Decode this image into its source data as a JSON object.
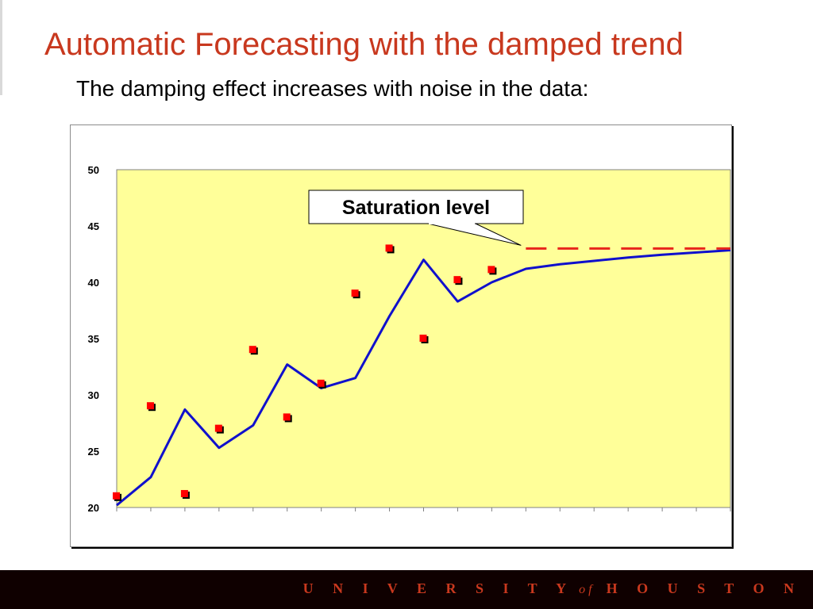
{
  "slide": {
    "title": "Automatic Forecasting with the damped trend",
    "subtitle": "The damping effect increases with noise in the data:"
  },
  "chart_data": {
    "type": "line",
    "ylim": [
      20,
      50
    ],
    "yticks": [
      "20",
      "25",
      "30",
      "35",
      "40",
      "45",
      "50"
    ],
    "num_categories": 19,
    "plot_background": "#ffff99",
    "grid": false,
    "series": [
      {
        "kind": "scatter",
        "marker_color": "#ff0000",
        "values": [
          21,
          29,
          21.2,
          27,
          34,
          28,
          31,
          39,
          43,
          35,
          40.2,
          41.1
        ]
      },
      {
        "kind": "line",
        "color": "#1010cc",
        "values": [
          20.2,
          22.7,
          28.7,
          25.3,
          27.3,
          32.7,
          30.6,
          31.5,
          37,
          42,
          38.3,
          40,
          41.2,
          41.6,
          41.9,
          42.2,
          42.45,
          42.65,
          42.85
        ]
      },
      {
        "kind": "dashed-line",
        "color": "#e8261c",
        "x_start_index": 12,
        "value": 43
      }
    ],
    "annotation": {
      "text": "Saturation level"
    }
  },
  "footer": {
    "university": "U N I V E R S I T Y",
    "of": "of",
    "houston": "H O U S T O N"
  }
}
